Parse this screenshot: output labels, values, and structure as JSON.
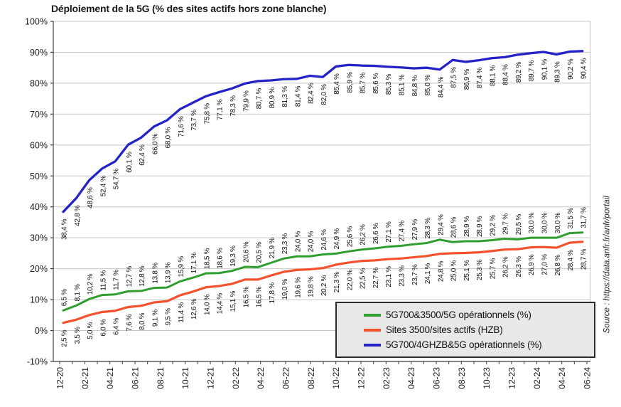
{
  "source_note": "Source : https://data.anfr.fr/anfr/portail",
  "chart_data": {
    "type": "line",
    "title": "Déploiement de la 5G (% des sites actifs hors zone blanche)",
    "grid": true,
    "legend_position": "inside-bottom-right",
    "x_axis": {
      "tick_labels": [
        "12-20",
        "02-21",
        "04-21",
        "06-21",
        "08-21",
        "10-21",
        "12-21",
        "02-22",
        "04-22",
        "06-22",
        "08-22",
        "10-22",
        "12-22",
        "02-23",
        "04-23",
        "06-23",
        "08-23",
        "10-23",
        "12-23",
        "02-24",
        "04-24",
        "06-24"
      ],
      "points_between_labeled_ticks": 2,
      "minor_tick_count": 43
    },
    "y_axis": {
      "min": -10,
      "max": 100,
      "tick_step": 10,
      "tick_labels": [
        "100%",
        "90%",
        "80%",
        "70%",
        "60%",
        "50%",
        "40%",
        "30%",
        "20%",
        "10%",
        "0%",
        "-10%"
      ]
    },
    "point_label_format": "decimal-comma percent, rotated 90°",
    "series": [
      {
        "name": "5G700&3500/5G opérationnels (%)",
        "color": "#2f9e2f",
        "label_side": "above",
        "values": [
          6.5,
          8.1,
          10.2,
          11.5,
          11.7,
          12.7,
          12.8,
          13.8,
          13.9,
          15.9,
          17.1,
          18.5,
          18.6,
          19.3,
          20.6,
          20.5,
          21.9,
          23.3,
          24.0,
          24.0,
          24.6,
          24.9,
          25.6,
          26.2,
          26.6,
          27.1,
          27.4,
          27.9,
          28.3,
          29.4,
          28.6,
          28.9,
          28.9,
          29.2,
          29.7,
          29.5,
          30.0,
          30.0,
          30.0,
          31.5,
          31.7
        ]
      },
      {
        "name": "Sites 3500/sites actifs (HZB)",
        "color": "#f4522c",
        "label_side": "below",
        "values": [
          2.5,
          3.5,
          5.0,
          6.0,
          6.4,
          7.6,
          8.0,
          9.1,
          9.5,
          11.4,
          12.6,
          14.0,
          14.4,
          15.1,
          16.5,
          16.5,
          17.8,
          19.0,
          19.6,
          19.8,
          20.2,
          21.3,
          22.0,
          22.5,
          22.7,
          23.1,
          23.3,
          23.7,
          24.1,
          24.8,
          25.0,
          25.1,
          25.3,
          25.7,
          26.2,
          26.3,
          26.9,
          27.0,
          26.8,
          28.4,
          28.7
        ]
      },
      {
        "name": "5G700/4GHZB&5G opérationnels (%)",
        "color": "#2323c8",
        "label_side": "below",
        "values": [
          38.4,
          42.8,
          48.6,
          52.4,
          54.7,
          60.1,
          62.4,
          66.0,
          68.0,
          71.6,
          73.7,
          75.8,
          77.1,
          78.3,
          79.9,
          80.7,
          80.9,
          81.3,
          81.4,
          82.4,
          82.0,
          85.4,
          85.9,
          85.7,
          85.6,
          85.3,
          85.1,
          84.8,
          85.0,
          84.4,
          87.5,
          86.9,
          87.4,
          88.1,
          88.4,
          89.2,
          89.7,
          90.1,
          89.3,
          90.2,
          90.4
        ]
      }
    ],
    "colors": {
      "gridline": "#c8c8c8",
      "axis": "#3c3c3c",
      "text": "#1a1a1a",
      "legend_bg": "#e8e8e8",
      "legend_border": "#2b2b2b"
    }
  }
}
